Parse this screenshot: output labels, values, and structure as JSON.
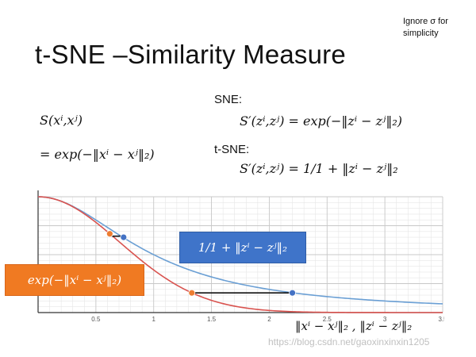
{
  "header": {
    "title": "t-SNE –Similarity Measure",
    "note_line1": "Ignore σ for",
    "note_line2": "simplicity"
  },
  "left_formula": {
    "line1": "S(xⁱ,xʲ)",
    "line2": "= exp(−‖xⁱ − xʲ‖₂)"
  },
  "sne": {
    "label": "SNE:",
    "formula": "S′(zⁱ,zʲ) = exp(−‖zⁱ − zʲ‖₂)"
  },
  "tsne": {
    "label": "t-SNE:",
    "formula": "S′(zⁱ,zʲ) = 1/1 + ‖zⁱ − zʲ‖₂"
  },
  "chart_callouts": {
    "blue": "1/1 + ‖zⁱ − zʲ‖₂",
    "orange": "exp(−‖xⁱ − xʲ‖₂)",
    "xaxis": "‖xⁱ − xʲ‖₂ , ‖zⁱ − zʲ‖₂"
  },
  "watermark": "https://blog.csdn.net/gaoxinxinxin1205",
  "chart_data": {
    "type": "line",
    "xlim": [
      0,
      3.5
    ],
    "ylim": [
      0,
      1
    ],
    "ticks": [
      "0.5",
      "1",
      "1.5",
      "2",
      "2.5",
      "3",
      "3.5"
    ],
    "tick_values": [
      0.5,
      1,
      1.5,
      2,
      2.5,
      3,
      3.5
    ],
    "grid": true,
    "series": [
      {
        "color": "#6a9fd4",
        "function": "1/(1+x^2)"
      },
      {
        "color": "#d9534f",
        "function": "exp(-x^2)"
      }
    ],
    "markers": [
      {
        "x": 0.62,
        "y": 0.68,
        "color": "#ed7d31"
      },
      {
        "x": 0.74,
        "y": 0.65,
        "color": "#4472c4"
      },
      {
        "x": 1.33,
        "y": 0.17,
        "color": "#ed7d31"
      },
      {
        "x": 2.2,
        "y": 0.17,
        "color": "#4472c4"
      }
    ],
    "links": [
      {
        "x1": 0.62,
        "x2": 0.74,
        "y": 0.66
      },
      {
        "x1": 1.33,
        "x2": 2.2,
        "y": 0.17
      }
    ]
  }
}
